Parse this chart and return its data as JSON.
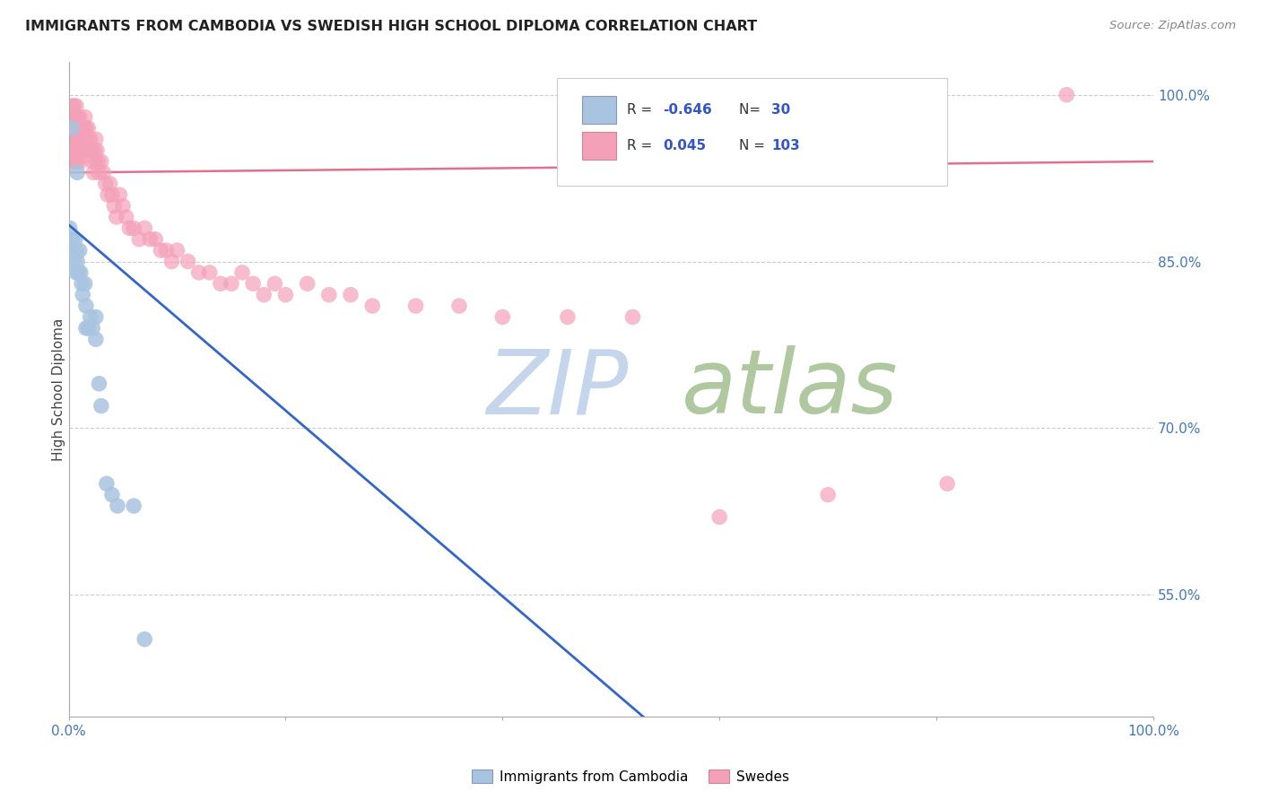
{
  "title": "IMMIGRANTS FROM CAMBODIA VS SWEDISH HIGH SCHOOL DIPLOMA CORRELATION CHART",
  "source": "Source: ZipAtlas.com",
  "ylabel": "High School Diploma",
  "ytick_labels": [
    "100.0%",
    "85.0%",
    "70.0%",
    "55.0%"
  ],
  "ytick_values": [
    1.0,
    0.85,
    0.7,
    0.55
  ],
  "legend_r_blue": "-0.646",
  "legend_n_blue": "30",
  "legend_r_pink": "0.045",
  "legend_n_pink": "103",
  "legend_label_blue": "Immigrants from Cambodia",
  "legend_label_pink": "Swedes",
  "blue_color": "#a8c4e0",
  "pink_color": "#f4a0b8",
  "blue_line_color": "#3366cc",
  "pink_line_color": "#e07090",
  "watermark_zip": "ZIP",
  "watermark_atlas": "atlas",
  "watermark_color_zip": "#c5d5ec",
  "watermark_color_atlas": "#b0c8a0",
  "blue_scatter_x": [
    0.003,
    0.008,
    0.001,
    0.003,
    0.004,
    0.005,
    0.006,
    0.007,
    0.007,
    0.008,
    0.009,
    0.01,
    0.011,
    0.012,
    0.013,
    0.015,
    0.016,
    0.016,
    0.018,
    0.02,
    0.022,
    0.025,
    0.025,
    0.028,
    0.03,
    0.035,
    0.04,
    0.045,
    0.06,
    0.07
  ],
  "blue_scatter_y": [
    0.97,
    0.93,
    0.88,
    0.87,
    0.86,
    0.85,
    0.87,
    0.86,
    0.84,
    0.85,
    0.84,
    0.86,
    0.84,
    0.83,
    0.82,
    0.83,
    0.81,
    0.79,
    0.79,
    0.8,
    0.79,
    0.78,
    0.8,
    0.74,
    0.72,
    0.65,
    0.64,
    0.63,
    0.63,
    0.51
  ],
  "pink_scatter_x": [
    0.001,
    0.001,
    0.002,
    0.002,
    0.002,
    0.003,
    0.003,
    0.003,
    0.003,
    0.004,
    0.004,
    0.004,
    0.005,
    0.005,
    0.005,
    0.005,
    0.006,
    0.006,
    0.006,
    0.007,
    0.007,
    0.007,
    0.007,
    0.008,
    0.008,
    0.008,
    0.008,
    0.009,
    0.009,
    0.01,
    0.01,
    0.01,
    0.011,
    0.011,
    0.011,
    0.012,
    0.012,
    0.013,
    0.013,
    0.014,
    0.014,
    0.015,
    0.015,
    0.015,
    0.016,
    0.016,
    0.017,
    0.018,
    0.019,
    0.02,
    0.021,
    0.022,
    0.023,
    0.024,
    0.025,
    0.025,
    0.026,
    0.027,
    0.028,
    0.03,
    0.032,
    0.034,
    0.036,
    0.038,
    0.04,
    0.042,
    0.044,
    0.047,
    0.05,
    0.053,
    0.056,
    0.06,
    0.065,
    0.07,
    0.075,
    0.08,
    0.085,
    0.09,
    0.095,
    0.1,
    0.11,
    0.12,
    0.13,
    0.14,
    0.15,
    0.16,
    0.17,
    0.18,
    0.19,
    0.2,
    0.22,
    0.24,
    0.26,
    0.28,
    0.32,
    0.36,
    0.4,
    0.46,
    0.52,
    0.6,
    0.7,
    0.81,
    0.92
  ],
  "pink_scatter_y": [
    0.97,
    0.96,
    0.98,
    0.97,
    0.95,
    0.99,
    0.98,
    0.96,
    0.94,
    0.98,
    0.97,
    0.95,
    0.99,
    0.97,
    0.96,
    0.94,
    0.98,
    0.97,
    0.95,
    0.99,
    0.97,
    0.96,
    0.94,
    0.98,
    0.97,
    0.96,
    0.94,
    0.97,
    0.95,
    0.98,
    0.97,
    0.95,
    0.97,
    0.96,
    0.94,
    0.97,
    0.95,
    0.97,
    0.95,
    0.97,
    0.95,
    0.98,
    0.97,
    0.95,
    0.97,
    0.95,
    0.96,
    0.97,
    0.95,
    0.96,
    0.95,
    0.94,
    0.93,
    0.95,
    0.96,
    0.94,
    0.95,
    0.94,
    0.93,
    0.94,
    0.93,
    0.92,
    0.91,
    0.92,
    0.91,
    0.9,
    0.89,
    0.91,
    0.9,
    0.89,
    0.88,
    0.88,
    0.87,
    0.88,
    0.87,
    0.87,
    0.86,
    0.86,
    0.85,
    0.86,
    0.85,
    0.84,
    0.84,
    0.83,
    0.83,
    0.84,
    0.83,
    0.82,
    0.83,
    0.82,
    0.83,
    0.82,
    0.82,
    0.81,
    0.81,
    0.81,
    0.8,
    0.8,
    0.8,
    0.62,
    0.64,
    0.65,
    1.0
  ],
  "blue_line_x0": 0.0,
  "blue_line_x1": 0.53,
  "blue_line_y0": 0.883,
  "blue_line_y1": 0.44,
  "pink_line_x0": 0.0,
  "pink_line_x1": 1.0,
  "pink_line_y0": 0.93,
  "pink_line_y1": 0.94,
  "xlim": [
    0.0,
    1.0
  ],
  "ylim": [
    0.44,
    1.03
  ]
}
